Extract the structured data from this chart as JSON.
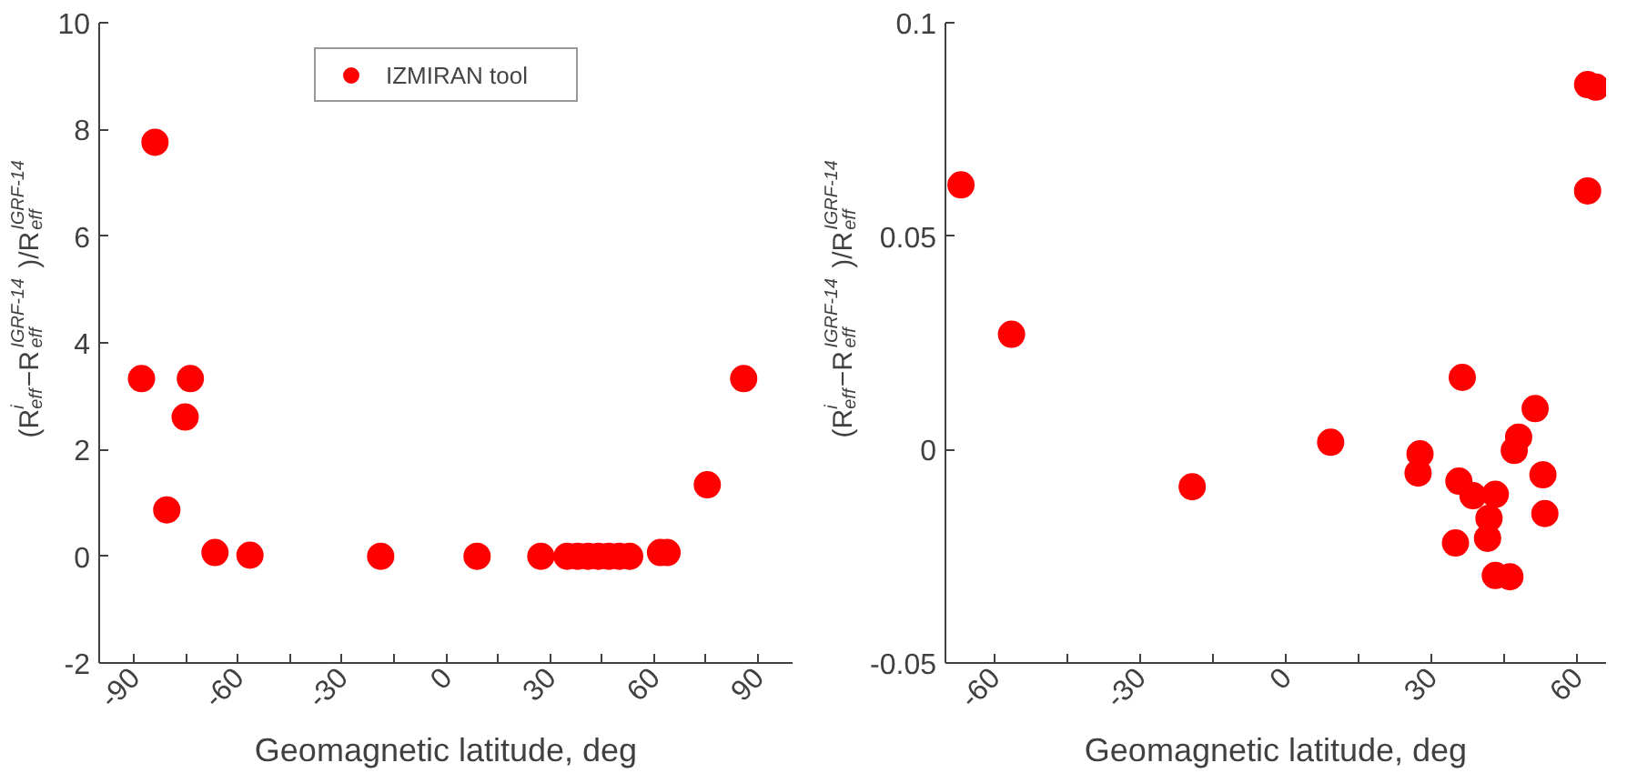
{
  "chart_data": [
    {
      "type": "scatter",
      "xlabel": "Geomagnetic latitude, deg",
      "ylabel": "(R$^{i}$$_{eff}$−R$^{IGRF-14}$$_{eff}$)/R$^{IGRF-14}$$_{eff}$",
      "marker": "circle",
      "legend": "top",
      "grid": false,
      "xlim": [
        -100,
        100
      ],
      "ylim": [
        -2,
        10
      ],
      "xticks": [
        -90,
        {
          "value": -75,
          "label": null
        },
        -60,
        {
          "value": -45,
          "label": null
        },
        -30,
        {
          "value": -15,
          "label": null
        },
        0,
        {
          "value": 15,
          "label": null
        },
        30,
        {
          "value": 45,
          "label": null
        },
        60,
        {
          "value": 75,
          "label": null
        },
        90
      ],
      "yticks": [
        -2,
        0,
        2,
        4,
        6,
        8,
        10
      ],
      "series": [
        {
          "name": "IZMIRAN tool",
          "color": "#ff0000",
          "x": [
            -87.8,
            -83.9,
            -80.5,
            -75.2,
            -73.7,
            -66.6,
            -56.5,
            -18.8,
            9.0,
            27.4,
            35.0,
            38.0,
            41.0,
            44.0,
            47.0,
            50.0,
            53.0,
            61.9,
            63.8,
            75.4,
            85.9
          ],
          "values": [
            3.33,
            7.76,
            0.87,
            2.61,
            3.33,
            0.07,
            0.02,
            0,
            0,
            0,
            0,
            0,
            0,
            0,
            0,
            0,
            0,
            0.07,
            0.07,
            1.34,
            3.33
          ]
        }
      ]
    },
    {
      "type": "scatter",
      "xlabel": "Geomagnetic latitude, deg",
      "ylabel": "(R$^{i}$$_{eff}$−R$^{IGRF-14}$$_{eff}$)/R$^{IGRF-14}$$_{eff}$",
      "marker": "circle",
      "grid": false,
      "xlim": [
        -70,
        66
      ],
      "ylim": [
        -0.05,
        0.1
      ],
      "xticks": [
        -60,
        {
          "value": -45,
          "label": null
        },
        -30,
        {
          "value": -15,
          "label": null
        },
        0,
        {
          "value": 15,
          "label": null
        },
        30,
        {
          "value": 45,
          "label": null
        },
        60
      ],
      "yticks": [
        -0.05,
        0,
        0.05,
        0.1
      ],
      "series": [
        {
          "color": "#ff0000",
          "x": [
            -66.8,
            -56.4,
            -19.2,
            9.3,
            27.7,
            27.3,
            35.7,
            36.4,
            35.0,
            38.6,
            43.2,
            41.9,
            41.6,
            43.2,
            46.2,
            47.1,
            48.0,
            51.4,
            53.0,
            53.4,
            62.2,
            62.2,
            63.9
          ],
          "values": [
            0.062,
            0.027,
            -0.0087,
            0.0017,
            -0.001,
            -0.0055,
            -0.0074,
            0.0169,
            -0.0219,
            -0.0108,
            -0.0105,
            -0.0161,
            -0.0208,
            -0.0295,
            -0.0298,
            -0.0002,
            0.0029,
            0.0096,
            -0.0059,
            -0.015,
            0.0606,
            0.0855,
            0.0849
          ]
        }
      ]
    }
  ]
}
